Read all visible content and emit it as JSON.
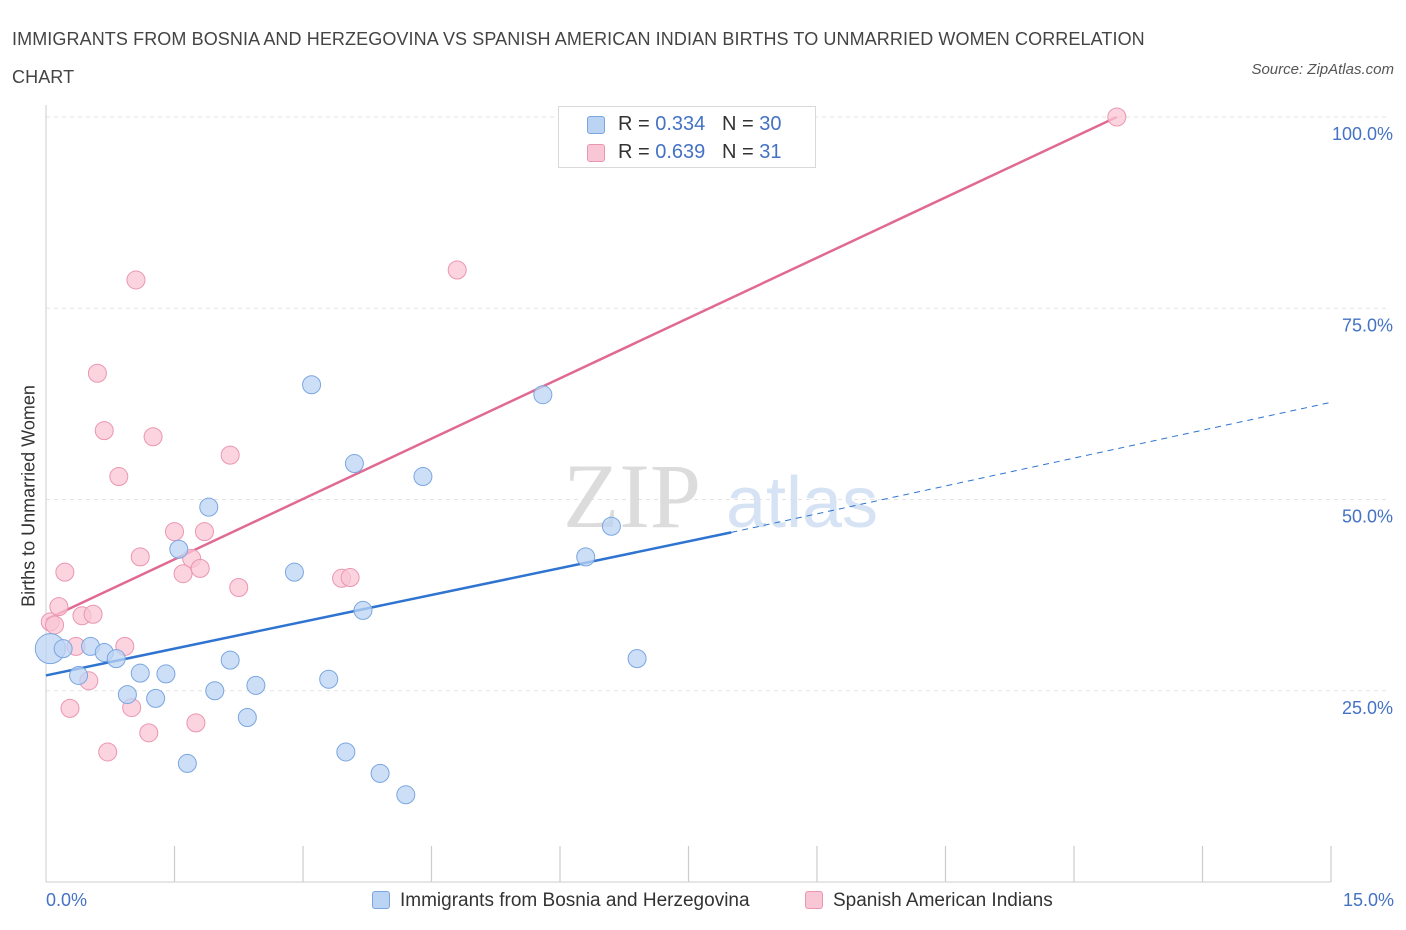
{
  "title": "IMMIGRANTS FROM BOSNIA AND HERZEGOVINA VS SPANISH AMERICAN INDIAN BIRTHS TO UNMARRIED WOMEN CORRELATION CHART",
  "source": "Source: ZipAtlas.com",
  "watermark": {
    "zip": "ZIP",
    "atlas": "atlas"
  },
  "legend_top": {
    "rows": [
      {
        "r_label": "R = ",
        "r_value": "0.334",
        "n_label": "N = ",
        "n_value": "30",
        "color": "#aac8f0"
      },
      {
        "r_label": "R = ",
        "r_value": "0.639",
        "n_label": "N = ",
        "n_value": "31",
        "color": "#f5b8cb"
      }
    ]
  },
  "colors": {
    "blue_fill": "#bcd4f4",
    "blue_stroke": "#7aa6e0",
    "blue_line": "#2e74d0",
    "pink_fill": "#f9c6d6",
    "pink_stroke": "#eb96b1",
    "pink_line": "#e06a93",
    "grid": "#e3e3e3",
    "axis_text": "#4472c4"
  },
  "chart_data": {
    "type": "scatter",
    "title": "IMMIGRANTS FROM BOSNIA AND HERZEGOVINA VS SPANISH AMERICAN INDIAN BIRTHS TO UNMARRIED WOMEN CORRELATION CHART",
    "xlabel": "",
    "ylabel": "Births to Unmarried Women",
    "xlim": [
      0,
      15
    ],
    "ylim": [
      0,
      100
    ],
    "x_tick_labels": [
      "0.0%",
      "15.0%"
    ],
    "y_ticks": [
      25,
      50,
      75,
      100
    ],
    "y_tick_labels": [
      "25.0%",
      "50.0%",
      "75.0%",
      "100.0%"
    ],
    "grid": true,
    "legend_position": "bottom",
    "series": [
      {
        "name": "Immigrants from Bosnia and Herzegovina",
        "color": "blue",
        "r": 0.334,
        "n": 30,
        "points": [
          [
            0.05,
            30.5
          ],
          [
            0.2,
            30.5
          ],
          [
            0.38,
            27.0
          ],
          [
            0.52,
            30.8
          ],
          [
            0.68,
            30.0
          ],
          [
            0.82,
            29.2
          ],
          [
            0.95,
            24.5
          ],
          [
            1.1,
            27.3
          ],
          [
            1.28,
            24.0
          ],
          [
            1.4,
            27.2
          ],
          [
            1.55,
            43.5
          ],
          [
            1.65,
            15.5
          ],
          [
            1.9,
            49.0
          ],
          [
            1.97,
            25.0
          ],
          [
            2.15,
            29.0
          ],
          [
            2.35,
            21.5
          ],
          [
            2.45,
            25.7
          ],
          [
            2.9,
            40.5
          ],
          [
            3.1,
            65.0
          ],
          [
            3.3,
            26.5
          ],
          [
            3.5,
            17.0
          ],
          [
            3.6,
            54.7
          ],
          [
            3.7,
            35.5
          ],
          [
            3.9,
            14.2
          ],
          [
            4.2,
            11.4
          ],
          [
            4.4,
            53.0
          ],
          [
            5.8,
            63.7
          ],
          [
            6.3,
            42.5
          ],
          [
            6.6,
            46.5
          ],
          [
            6.9,
            29.2
          ]
        ],
        "trend": {
          "x1": 0,
          "y1": 27.0,
          "x2": 8.0,
          "y2": 45.7,
          "dashed_to_x": 15,
          "dashed_to_y": 62.7
        }
      },
      {
        "name": "Spanish American Indians",
        "color": "pink",
        "r": 0.639,
        "n": 31,
        "points": [
          [
            0.05,
            34.0
          ],
          [
            0.1,
            33.6
          ],
          [
            0.15,
            36.0
          ],
          [
            0.22,
            40.5
          ],
          [
            0.28,
            22.7
          ],
          [
            0.35,
            30.8
          ],
          [
            0.42,
            34.8
          ],
          [
            0.5,
            26.3
          ],
          [
            0.55,
            35.0
          ],
          [
            0.6,
            66.5
          ],
          [
            0.68,
            59.0
          ],
          [
            0.72,
            17.0
          ],
          [
            0.85,
            53.0
          ],
          [
            0.92,
            30.8
          ],
          [
            1.0,
            22.8
          ],
          [
            1.05,
            78.7
          ],
          [
            1.1,
            42.5
          ],
          [
            1.2,
            19.5
          ],
          [
            1.25,
            58.2
          ],
          [
            1.5,
            45.8
          ],
          [
            1.6,
            40.3
          ],
          [
            1.7,
            42.3
          ],
          [
            1.75,
            20.8
          ],
          [
            1.8,
            41.0
          ],
          [
            1.85,
            45.8
          ],
          [
            2.15,
            55.8
          ],
          [
            2.25,
            38.5
          ],
          [
            3.45,
            39.7
          ],
          [
            3.55,
            39.8
          ],
          [
            4.8,
            80.0
          ],
          [
            12.5,
            100.0
          ]
        ],
        "trend": {
          "x1": 0,
          "y1": 34.3,
          "x2": 12.5,
          "y2": 100.0
        }
      }
    ]
  },
  "bottom_legend": {
    "items": [
      {
        "label": "Immigrants from Bosnia and Herzegovina"
      },
      {
        "label": "Spanish American Indians"
      }
    ]
  }
}
